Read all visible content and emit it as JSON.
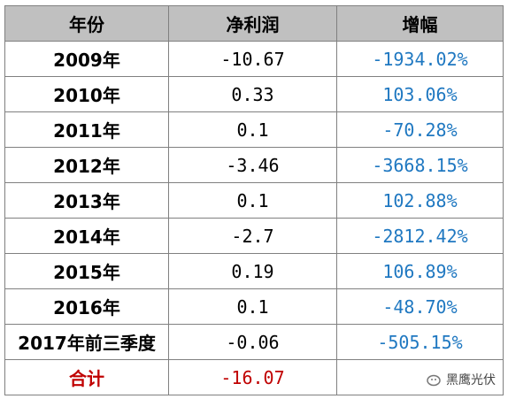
{
  "table": {
    "headers": [
      "年份",
      "净利润",
      "增幅"
    ],
    "rows": [
      [
        "2009年",
        "-10.67",
        "-1934.02%"
      ],
      [
        "2010年",
        "0.33",
        "103.06%"
      ],
      [
        "2011年",
        "0.1",
        "-70.28%"
      ],
      [
        "2012年",
        "-3.46",
        "-3668.15%"
      ],
      [
        "2013年",
        "0.1",
        "102.88%"
      ],
      [
        "2014年",
        "-2.7",
        "-2812.42%"
      ],
      [
        "2015年",
        "0.19",
        "106.89%"
      ],
      [
        "2016年",
        "0.1",
        "-48.70%"
      ],
      [
        "2017年前三季度",
        "-0.06",
        "-505.15%"
      ]
    ],
    "total": [
      "合计",
      "-16.07"
    ]
  },
  "watermark": "黑鹰光伏"
}
